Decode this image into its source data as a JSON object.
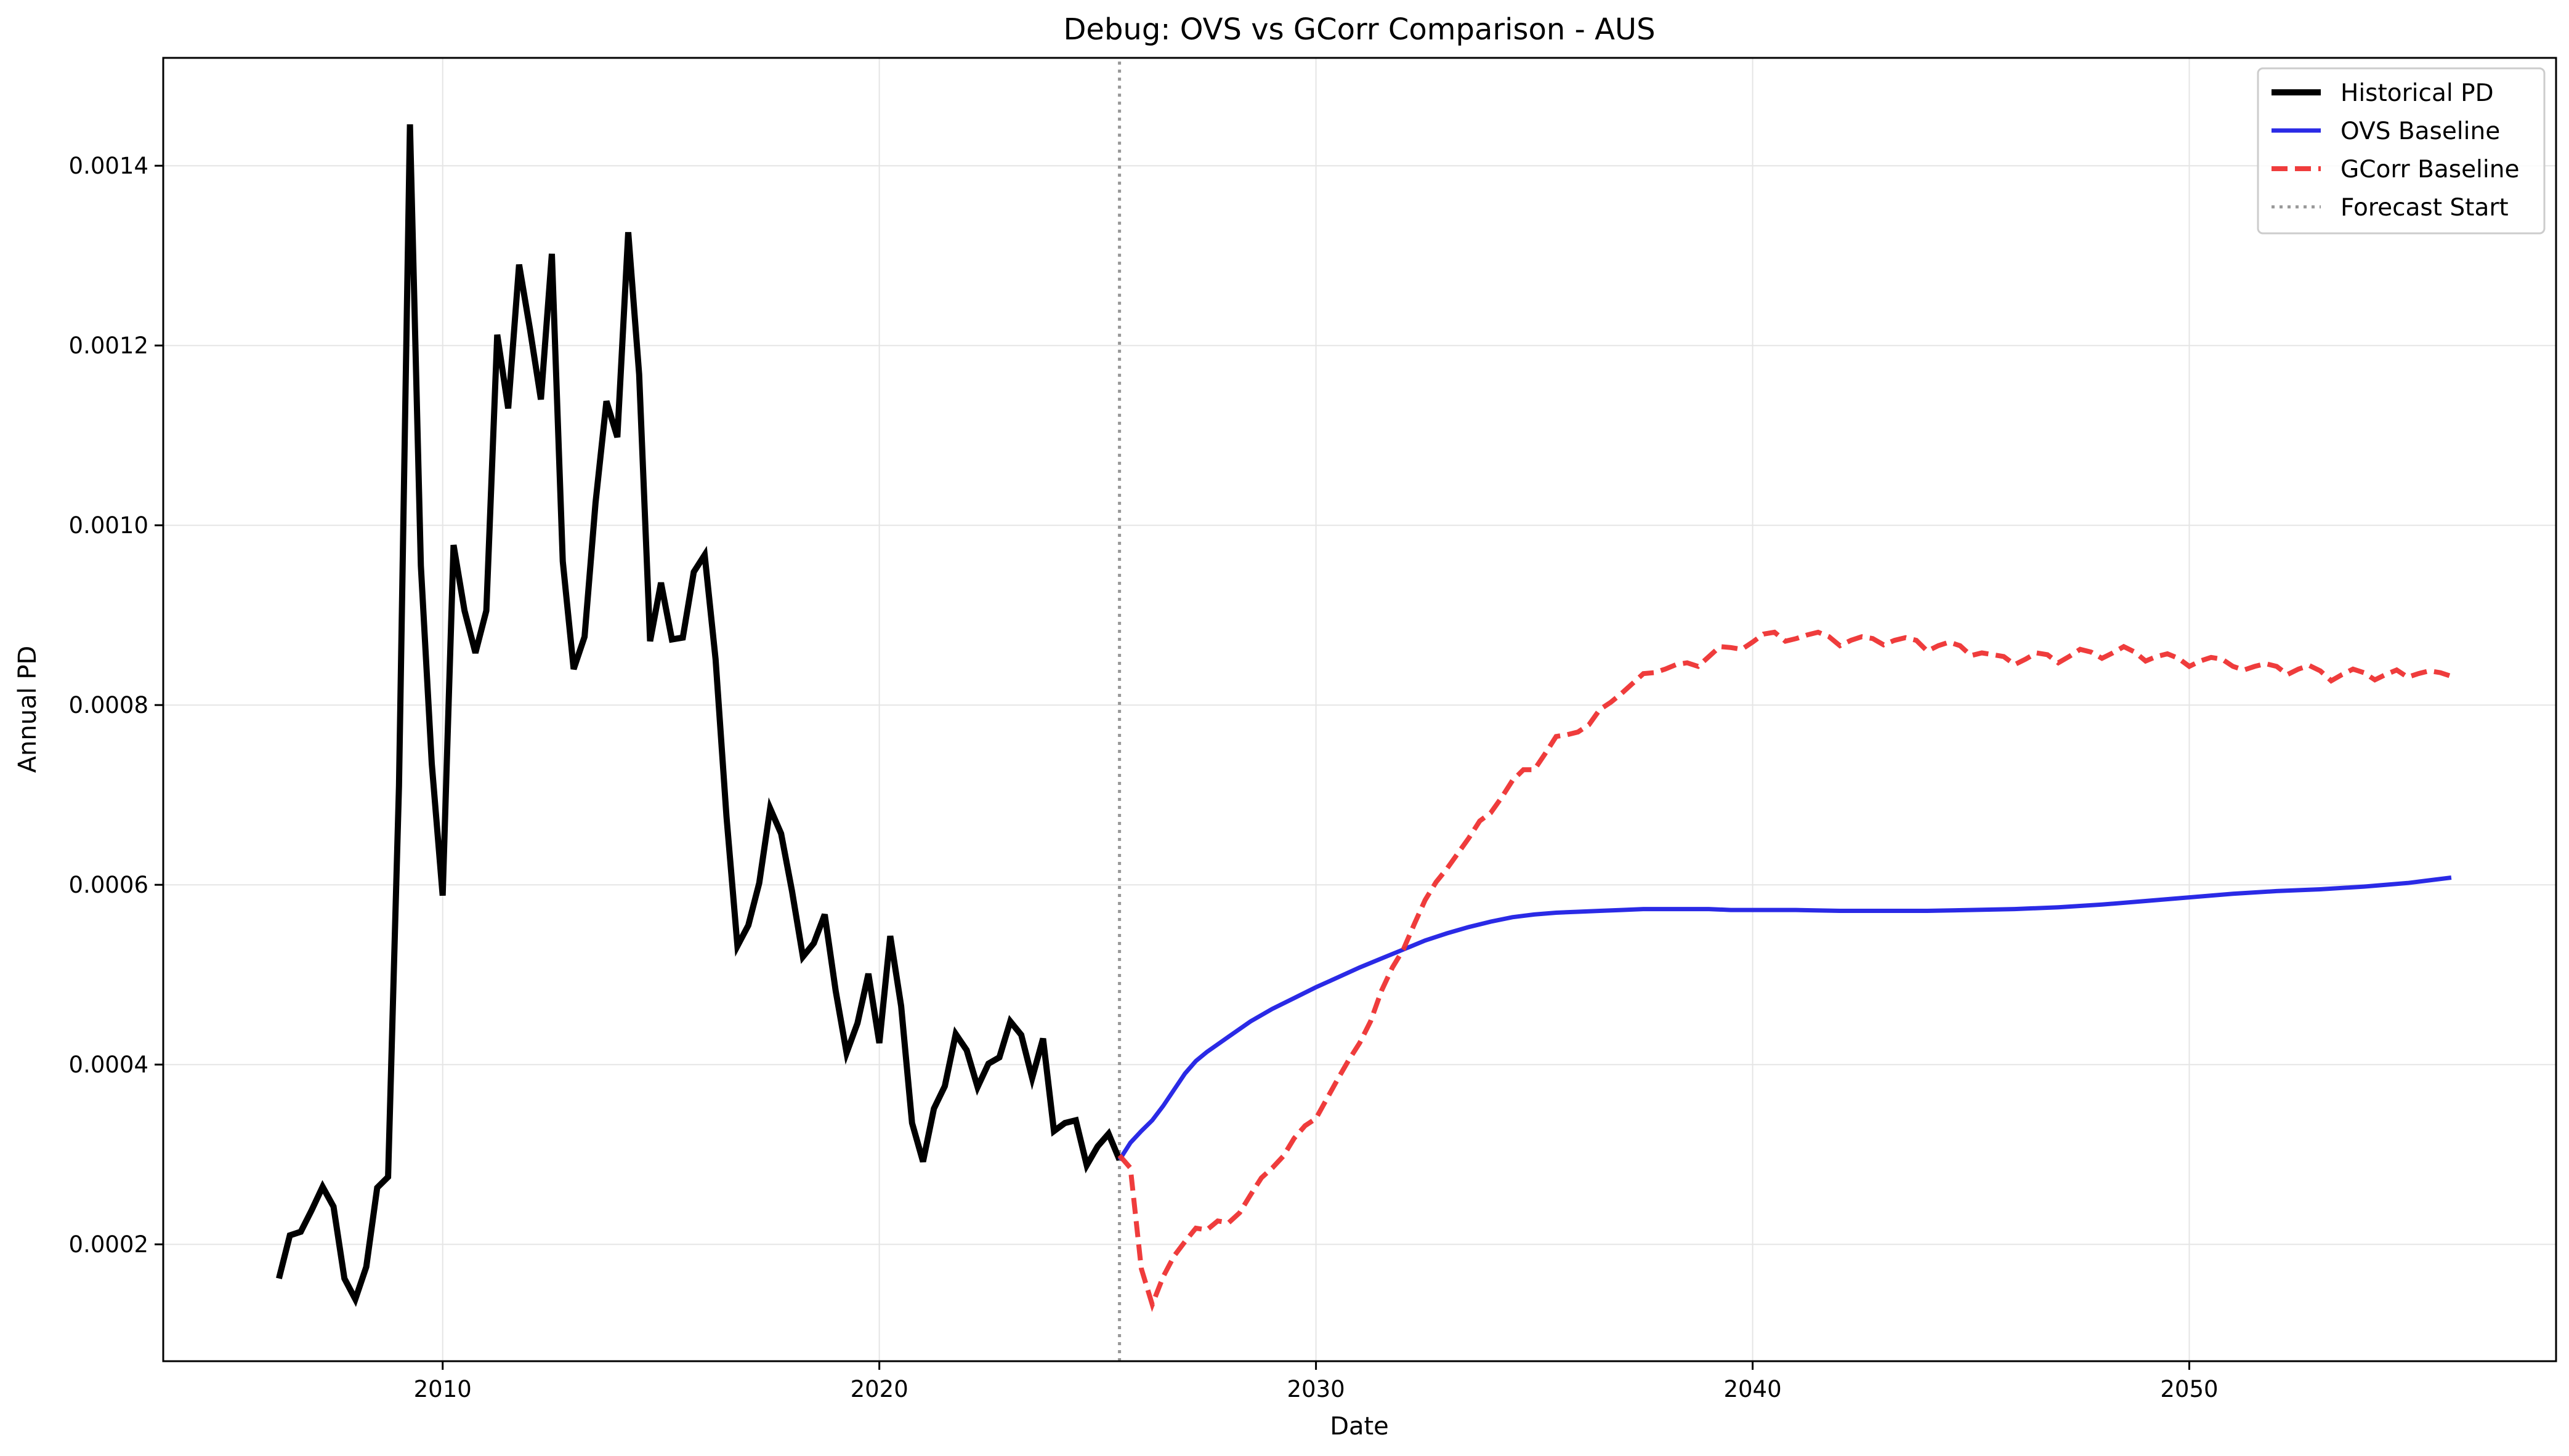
{
  "chart_data": {
    "type": "line",
    "title": "Debug: OVS vs GCorr Comparison - AUS",
    "xlabel": "Date",
    "ylabel": "Annual PD",
    "x_tick_labels": [
      "2010",
      "2020",
      "2030",
      "2040",
      "2050"
    ],
    "y_tick_labels": [
      "0.0002",
      "0.0004",
      "0.0006",
      "0.0008",
      "0.0010",
      "0.0012",
      "0.0014"
    ],
    "x_ticks": [
      2010,
      2020,
      2030,
      2040,
      2050
    ],
    "y_ticks": [
      0.0002,
      0.0004,
      0.0006,
      0.0008,
      0.001,
      0.0012,
      0.0014
    ],
    "xlim": [
      2003.6,
      2058.4
    ],
    "ylim": [
      7e-05,
      0.00152
    ],
    "grid": true,
    "legend_position": "top-right",
    "forecast_start": 2025.5,
    "series": [
      {
        "name": "Historical PD",
        "color": "#000000",
        "style": "solid",
        "x": [
          2006.25,
          2006.5,
          2006.75,
          2007.0,
          2007.25,
          2007.5,
          2007.75,
          2008.0,
          2008.25,
          2008.5,
          2008.75,
          2009.0,
          2009.25,
          2009.5,
          2009.75,
          2010.0,
          2010.25,
          2010.5,
          2010.75,
          2011.0,
          2011.25,
          2011.5,
          2011.75,
          2012.0,
          2012.25,
          2012.5,
          2012.75,
          2013.0,
          2013.25,
          2013.5,
          2013.75,
          2014.0,
          2014.25,
          2014.5,
          2014.75,
          2015.0,
          2015.25,
          2015.5,
          2015.75,
          2016.0,
          2016.25,
          2016.5,
          2016.75,
          2017.0,
          2017.25,
          2017.5,
          2017.75,
          2018.0,
          2018.25,
          2018.5,
          2018.75,
          2019.0,
          2019.25,
          2019.5,
          2019.75,
          2020.0,
          2020.25,
          2020.5,
          2020.75,
          2021.0,
          2021.25,
          2021.5,
          2021.75,
          2022.0,
          2022.25,
          2022.5,
          2022.75,
          2023.0,
          2023.25,
          2023.5,
          2023.75,
          2024.0,
          2024.25,
          2024.5,
          2024.75,
          2025.0,
          2025.25,
          2025.5
        ],
        "y": [
          0.000162,
          0.00021,
          0.000214,
          0.000238,
          0.000264,
          0.000242,
          0.000162,
          0.000139,
          0.000175,
          0.000263,
          0.000275,
          0.00071,
          0.001446,
          0.000955,
          0.000735,
          0.000588,
          0.000978,
          0.000905,
          0.000858,
          0.000905,
          0.001212,
          0.00113,
          0.00129,
          0.001218,
          0.00114,
          0.001302,
          0.00096,
          0.00084,
          0.000876,
          0.001025,
          0.001138,
          0.001098,
          0.001326,
          0.001168,
          0.000871,
          0.000936,
          0.000873,
          0.000875,
          0.000948,
          0.000967,
          0.000851,
          0.000676,
          0.000532,
          0.000555,
          0.000602,
          0.000685,
          0.000657,
          0.000593,
          0.00052,
          0.000535,
          0.000567,
          0.000482,
          0.000413,
          0.000446,
          0.000501,
          0.000424,
          0.000543,
          0.000465,
          0.000335,
          0.000292,
          0.000351,
          0.000376,
          0.000434,
          0.000416,
          0.000375,
          0.000401,
          0.000408,
          0.000448,
          0.000433,
          0.000385,
          0.000429,
          0.000326,
          0.000335,
          0.000338,
          0.000288,
          0.000309,
          0.000323,
          0.000294
        ]
      },
      {
        "name": "OVS Baseline",
        "color": "#2a2ae6",
        "style": "solid",
        "x": [
          2025.5,
          2025.75,
          2026.0,
          2026.25,
          2026.5,
          2026.75,
          2027.0,
          2027.25,
          2027.5,
          2028.0,
          2028.5,
          2029.0,
          2029.5,
          2030.0,
          2030.5,
          2031.0,
          2031.5,
          2032.0,
          2032.5,
          2033.0,
          2033.5,
          2034.0,
          2034.5,
          2035.0,
          2035.5,
          2036.0,
          2036.5,
          2037.0,
          2037.5,
          2038.0,
          2038.5,
          2039.0,
          2039.5,
          2040.0,
          2041.0,
          2042.0,
          2043.0,
          2044.0,
          2045.0,
          2046.0,
          2047.0,
          2048.0,
          2049.0,
          2050.0,
          2051.0,
          2052.0,
          2053.0,
          2054.0,
          2055.0,
          2056.0
        ],
        "y": [
          0.000294,
          0.000313,
          0.000326,
          0.000338,
          0.000354,
          0.000372,
          0.00039,
          0.000404,
          0.000414,
          0.000431,
          0.000448,
          0.000462,
          0.000474,
          0.000486,
          0.000497,
          0.000508,
          0.000518,
          0.000528,
          0.000538,
          0.000546,
          0.000553,
          0.000559,
          0.000564,
          0.000567,
          0.000569,
          0.00057,
          0.000571,
          0.000572,
          0.000573,
          0.000573,
          0.000573,
          0.000573,
          0.000572,
          0.000572,
          0.000572,
          0.000571,
          0.000571,
          0.000571,
          0.000572,
          0.000573,
          0.000575,
          0.000578,
          0.000582,
          0.000586,
          0.00059,
          0.000593,
          0.000595,
          0.000598,
          0.000602,
          0.000608
        ]
      },
      {
        "name": "GCorr Baseline",
        "color": "#ee3131",
        "style": "dashed",
        "x": [
          2025.5,
          2025.75,
          2026.0,
          2026.25,
          2026.5,
          2026.75,
          2027.0,
          2027.25,
          2027.5,
          2027.75,
          2028.0,
          2028.25,
          2028.5,
          2028.75,
          2029.0,
          2029.25,
          2029.5,
          2029.75,
          2030.0,
          2030.25,
          2030.5,
          2030.75,
          2031.0,
          2031.25,
          2031.5,
          2031.75,
          2032.0,
          2032.25,
          2032.5,
          2032.75,
          2033.0,
          2033.25,
          2033.5,
          2033.75,
          2034.0,
          2034.25,
          2034.5,
          2034.75,
          2035.0,
          2035.25,
          2035.5,
          2035.75,
          2036.0,
          2036.25,
          2036.5,
          2036.75,
          2037.0,
          2037.25,
          2037.5,
          2037.75,
          2038.0,
          2038.25,
          2038.5,
          2038.75,
          2039.0,
          2039.25,
          2039.5,
          2039.75,
          2040.0,
          2040.25,
          2040.5,
          2040.75,
          2041.0,
          2041.25,
          2041.5,
          2041.75,
          2042.0,
          2042.25,
          2042.5,
          2042.75,
          2043.0,
          2043.25,
          2043.5,
          2043.75,
          2044.0,
          2044.25,
          2044.5,
          2044.75,
          2045.0,
          2045.25,
          2045.5,
          2045.75,
          2046.0,
          2046.25,
          2046.5,
          2046.75,
          2047.0,
          2047.25,
          2047.5,
          2047.75,
          2048.0,
          2048.25,
          2048.5,
          2048.75,
          2049.0,
          2049.25,
          2049.5,
          2049.75,
          2050.0,
          2050.25,
          2050.5,
          2050.75,
          2051.0,
          2051.25,
          2051.5,
          2051.75,
          2052.0,
          2052.25,
          2052.5,
          2052.75,
          2053.0,
          2053.25,
          2053.5,
          2053.75,
          2054.0,
          2054.25,
          2054.5,
          2054.75,
          2055.0,
          2055.25,
          2055.5,
          2055.75,
          2056.0
        ],
        "y": [
          0.000299,
          0.000285,
          0.000173,
          0.000133,
          0.000164,
          0.000187,
          0.000203,
          0.000218,
          0.000216,
          0.000226,
          0.000224,
          0.000235,
          0.000255,
          0.000274,
          0.000285,
          0.000298,
          0.000318,
          0.000332,
          0.00034,
          0.000362,
          0.000384,
          0.000405,
          0.000424,
          0.000448,
          0.000482,
          0.000508,
          0.000528,
          0.000556,
          0.000583,
          0.000603,
          0.000618,
          0.000635,
          0.000652,
          0.000671,
          0.00068,
          0.000697,
          0.000716,
          0.000728,
          0.000728,
          0.000746,
          0.000765,
          0.000767,
          0.00077,
          0.000778,
          0.000795,
          0.000803,
          0.000813,
          0.000824,
          0.000835,
          0.000836,
          0.00084,
          0.000845,
          0.000847,
          0.000843,
          0.000854,
          0.000865,
          0.000864,
          0.000862,
          0.00087,
          0.000879,
          0.000881,
          0.000871,
          0.000874,
          0.000878,
          0.000881,
          0.000876,
          0.000866,
          0.000872,
          0.000876,
          0.000874,
          0.000867,
          0.000872,
          0.000875,
          0.000872,
          0.00086,
          0.000866,
          0.00087,
          0.000866,
          0.000855,
          0.000858,
          0.000856,
          0.000854,
          0.000845,
          0.000851,
          0.000858,
          0.000856,
          0.000847,
          0.000854,
          0.000862,
          0.000859,
          0.000852,
          0.000858,
          0.000865,
          0.000859,
          0.000849,
          0.000854,
          0.000857,
          0.000852,
          0.000843,
          0.000849,
          0.000853,
          0.000851,
          0.000843,
          0.000839,
          0.000843,
          0.000846,
          0.000843,
          0.000834,
          0.00084,
          0.000844,
          0.000838,
          0.000827,
          0.000834,
          0.00084,
          0.000836,
          0.000828,
          0.000834,
          0.000839,
          0.000831,
          0.000835,
          0.000838,
          0.000836,
          0.000832
        ]
      },
      {
        "name": "Forecast Start",
        "color": "#999999",
        "style": "dotted",
        "x": [
          2025.5,
          2025.5
        ],
        "y": [
          7e-05,
          0.00152
        ]
      }
    ]
  }
}
